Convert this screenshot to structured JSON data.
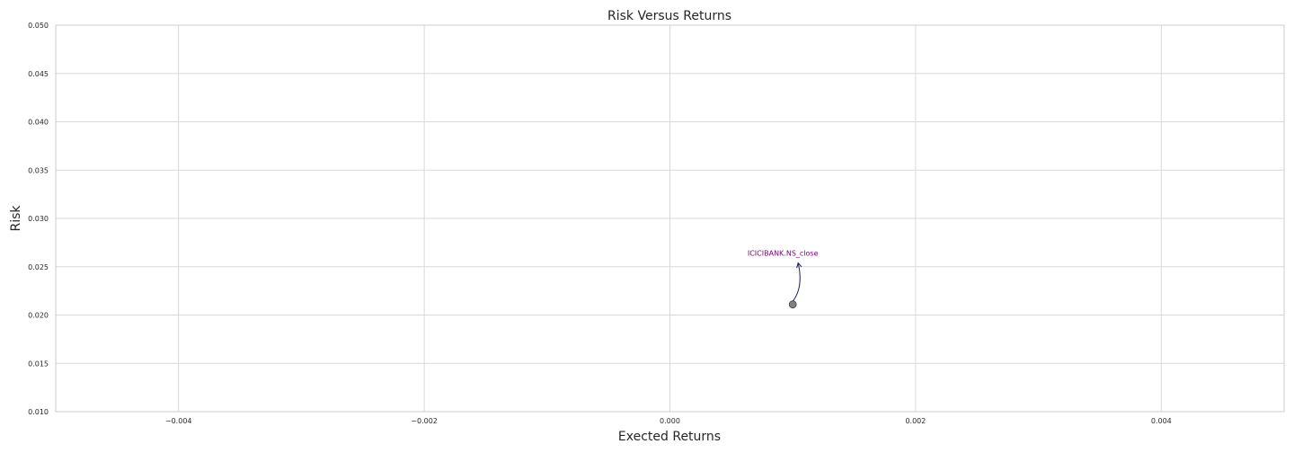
{
  "chart_data": {
    "type": "scatter",
    "title": "Risk Versus Returns",
    "xlabel": "Exected Returns",
    "ylabel": "Risk",
    "xlim": [
      -0.005,
      0.005
    ],
    "ylim": [
      0.01,
      0.05
    ],
    "xticks": [
      "−0.004",
      "−0.002",
      "0.000",
      "0.002",
      "0.004"
    ],
    "xtick_values": [
      -0.004,
      -0.002,
      0.0,
      0.002,
      0.004
    ],
    "yticks": [
      "0.010",
      "0.015",
      "0.020",
      "0.025",
      "0.030",
      "0.035",
      "0.040",
      "0.045",
      "0.050"
    ],
    "ytick_values": [
      0.01,
      0.015,
      0.02,
      0.025,
      0.03,
      0.035,
      0.04,
      0.045,
      0.05
    ],
    "grid": true,
    "points": [
      {
        "x": 0.001,
        "y": 0.0211,
        "label": "ICICIBANK.NS_close"
      }
    ],
    "colors": {
      "point": "#808080",
      "point_edge": "#404040",
      "annotation_text": "#800080",
      "arrow": "#191970",
      "grid": "#d9d9d9",
      "frame": "#cccccc"
    }
  }
}
